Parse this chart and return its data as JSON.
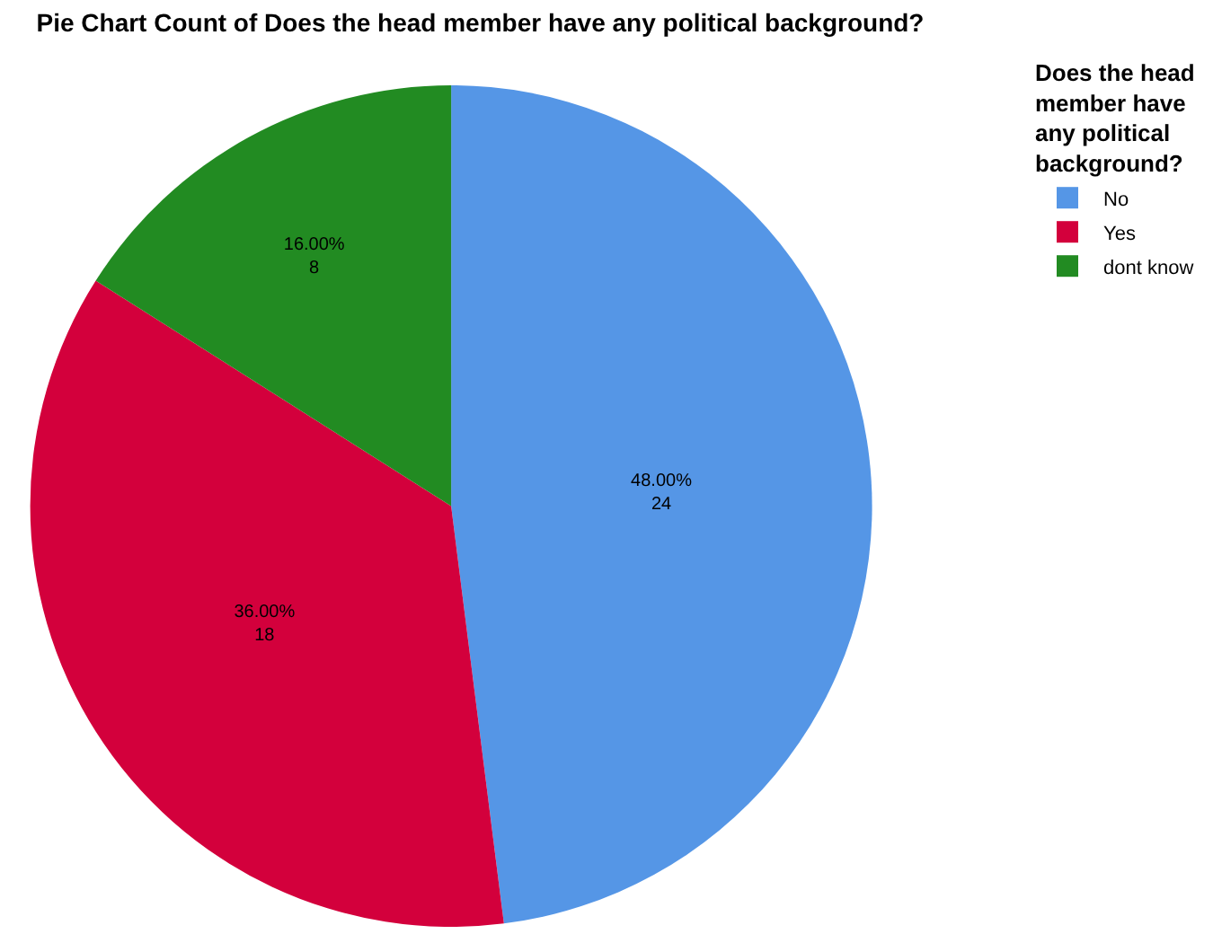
{
  "chart_data": {
    "type": "pie",
    "title": "Pie Chart Count of Does the head member have any political background?",
    "legend_title": "Does the head member have any political background?",
    "categories": [
      "No",
      "Yes",
      "dont know"
    ],
    "values": [
      24,
      18,
      8
    ],
    "colors": [
      "#5596e6",
      "#d3003c",
      "#228b22"
    ],
    "value_labels": [
      "48.00%\n24",
      "36.00%\n18",
      "16.00%\n8"
    ],
    "legend": "top right"
  }
}
